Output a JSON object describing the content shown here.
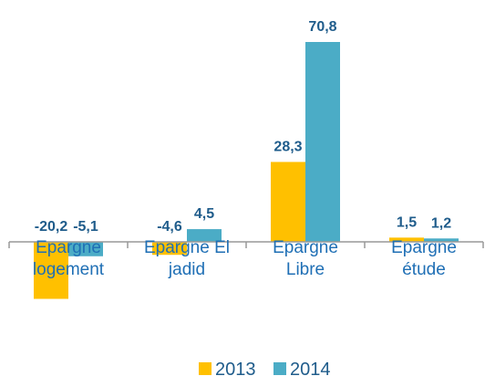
{
  "chart_data": {
    "type": "bar",
    "categories": [
      "Epargne logement",
      "Epargne El jadid",
      "Epargne Libre",
      "Epargne étude"
    ],
    "series": [
      {
        "name": "2013",
        "color": "#ffc000",
        "values": [
          -20.2,
          -4.6,
          28.3,
          1.5
        ],
        "value_labels": [
          "-20,2",
          "-4,6",
          "28,3",
          "1,5"
        ]
      },
      {
        "name": "2014",
        "color": "#4bacc6",
        "values": [
          -5.1,
          4.5,
          70.8,
          1.2
        ],
        "value_labels": [
          "-5,1",
          "4,5",
          "70,8",
          "1,2"
        ]
      }
    ],
    "legend": "bottom"
  }
}
